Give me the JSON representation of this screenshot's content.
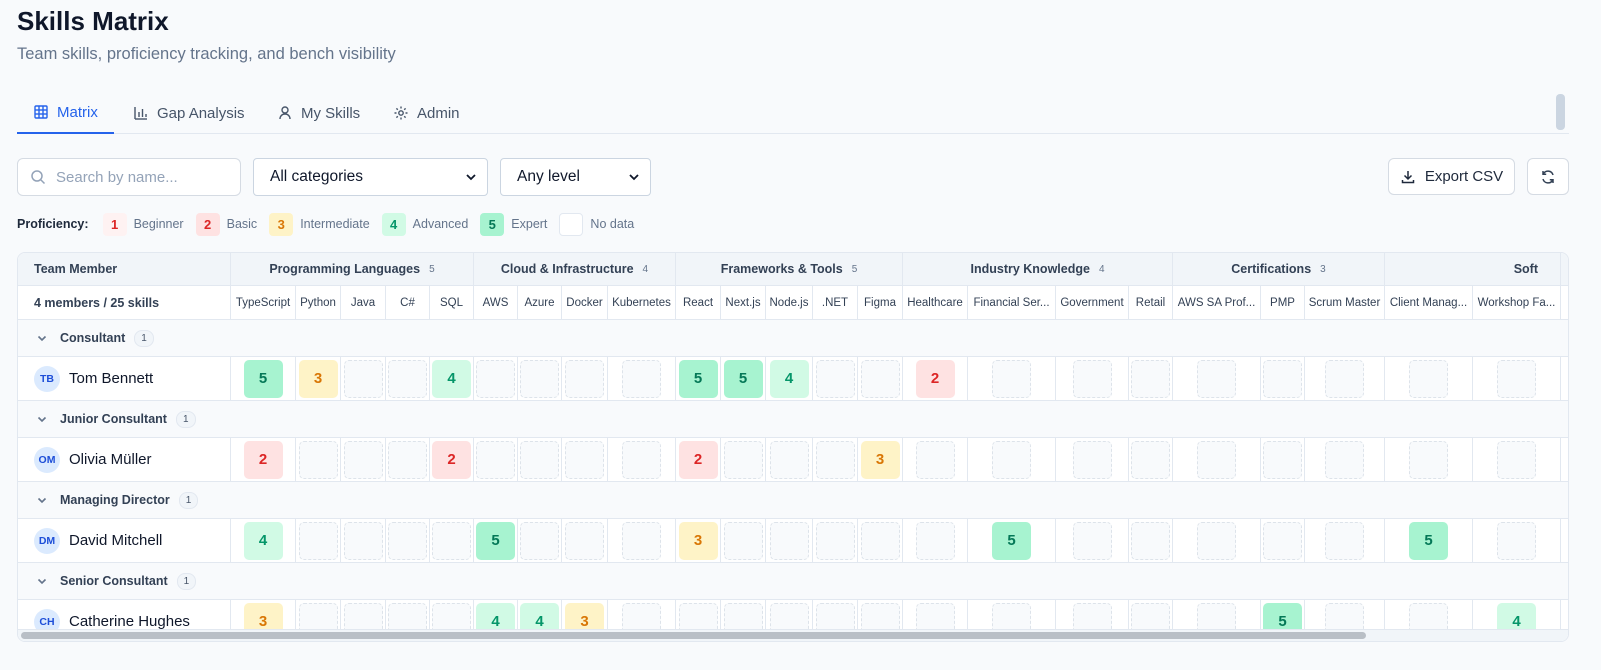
{
  "header": {
    "title": "Skills Matrix",
    "subtitle": "Team skills, proficiency tracking, and bench visibility"
  },
  "tabs": [
    {
      "label": "Matrix",
      "icon": "table-grid-icon",
      "active": true
    },
    {
      "label": "Gap Analysis",
      "icon": "bar-chart-icon",
      "active": false
    },
    {
      "label": "My Skills",
      "icon": "user-icon",
      "active": false
    },
    {
      "label": "Admin",
      "icon": "gear-icon",
      "active": false
    }
  ],
  "filters": {
    "search_placeholder": "Search by name...",
    "category_select": "All categories",
    "level_select": "Any level",
    "export_label": "Export CSV"
  },
  "legend": {
    "label": "Proficiency:",
    "items": [
      {
        "value": "1",
        "name": "Beginner"
      },
      {
        "value": "2",
        "name": "Basic"
      },
      {
        "value": "3",
        "name": "Intermediate"
      },
      {
        "value": "4",
        "name": "Advanced"
      },
      {
        "value": "5",
        "name": "Expert"
      },
      {
        "value": "",
        "name": "No data"
      }
    ]
  },
  "table": {
    "member_header": "Team Member",
    "summary": "4 members / 25 skills",
    "categories": [
      {
        "name": "Programming Languages",
        "count": "5"
      },
      {
        "name": "Cloud & Infrastructure",
        "count": "4"
      },
      {
        "name": "Frameworks & Tools",
        "count": "5"
      },
      {
        "name": "Industry Knowledge",
        "count": "4"
      },
      {
        "name": "Certifications",
        "count": "3"
      },
      {
        "name": "Soft",
        "count": ""
      }
    ],
    "skills": [
      "TypeScript",
      "Python",
      "Java",
      "C#",
      "SQL",
      "AWS",
      "Azure",
      "Docker",
      "Kubernetes",
      "React",
      "Next.js",
      "Node.js",
      ".NET",
      "Figma",
      "Healthcare",
      "Financial Ser...",
      "Government",
      "Retail",
      "AWS SA Prof...",
      "PMP",
      "Scrum Master",
      "Client Manag...",
      "Workshop Fa..."
    ],
    "groups": [
      {
        "name": "Consultant",
        "count": "1",
        "members": [
          {
            "initials": "TB",
            "name": "Tom Bennett",
            "levels": [
              "5",
              "3",
              "",
              "",
              "4",
              "",
              "",
              "",
              "",
              "5",
              "5",
              "4",
              "",
              "",
              "2",
              "",
              "",
              "",
              "",
              "",
              "",
              "",
              ""
            ]
          }
        ]
      },
      {
        "name": "Junior Consultant",
        "count": "1",
        "members": [
          {
            "initials": "OM",
            "name": "Olivia Müller",
            "levels": [
              "2",
              "",
              "",
              "",
              "2",
              "",
              "",
              "",
              "",
              "2",
              "",
              "",
              "",
              "3",
              "",
              "",
              "",
              "",
              "",
              "",
              "",
              "",
              ""
            ]
          }
        ]
      },
      {
        "name": "Managing Director",
        "count": "1",
        "members": [
          {
            "initials": "DM",
            "name": "David Mitchell",
            "levels": [
              "4",
              "",
              "",
              "",
              "",
              "5",
              "",
              "",
              "",
              "3",
              "",
              "",
              "",
              "",
              "",
              "5",
              "",
              "",
              "",
              "",
              "",
              "5",
              ""
            ]
          }
        ]
      },
      {
        "name": "Senior Consultant",
        "count": "1",
        "members": [
          {
            "initials": "CH",
            "name": "Catherine Hughes",
            "levels": [
              "3",
              "",
              "",
              "",
              "",
              "4",
              "4",
              "3",
              "",
              "",
              "",
              "",
              "",
              "",
              "",
              "",
              "",
              "",
              "",
              "5",
              "",
              "",
              "4"
            ]
          }
        ]
      }
    ]
  },
  "colors": {
    "accent": "#2563eb",
    "level1": "#fef2f2",
    "level2": "#fee2e2",
    "level3": "#fef3c7",
    "level4": "#d1fae5",
    "level5": "#a7f3d0"
  }
}
